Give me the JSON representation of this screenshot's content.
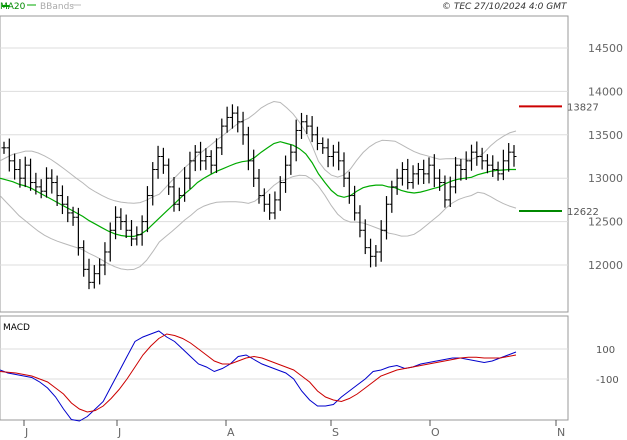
{
  "header": {
    "ma_label": "MA20",
    "bb_label": "BBands",
    "copyright": "© TEC 27/10/2024 4:0 GMT"
  },
  "macd_label": "MACD",
  "colors": {
    "price": "#000000",
    "ma": "#00aa00",
    "bbands": "#b8b8b8",
    "resistance": "#cc0000",
    "support": "#008800",
    "macd_line": "#0000cc",
    "signal_line": "#cc0000",
    "grid": "#dddddd"
  },
  "chart_data": [
    {
      "type": "ohlc",
      "title": "",
      "y_ticks": [
        12000,
        12500,
        13000,
        13500,
        14000,
        14500
      ],
      "ylim": [
        11750,
        14700
      ],
      "x_month_labels": [
        "J",
        "J",
        "A",
        "S",
        "O",
        "N"
      ],
      "levels": [
        {
          "name": "resistance",
          "value": 13827,
          "label": "13827"
        },
        {
          "name": "support",
          "value": 12622,
          "label": "12622"
        }
      ],
      "close": [
        13350,
        13200,
        13100,
        13000,
        13150,
        12950,
        12900,
        12850,
        13000,
        12950,
        12800,
        12700,
        12600,
        12550,
        12200,
        11950,
        11800,
        11900,
        12000,
        12150,
        12400,
        12550,
        12500,
        12400,
        12300,
        12350,
        12500,
        12800,
        13100,
        13250,
        13150,
        12900,
        12700,
        12800,
        13000,
        13200,
        13300,
        13200,
        13250,
        13150,
        13350,
        13600,
        13700,
        13750,
        13650,
        13500,
        13200,
        13000,
        12800,
        12700,
        12600,
        12750,
        12950,
        13150,
        13300,
        13550,
        13650,
        13600,
        13500,
        13400,
        13350,
        13250,
        13300,
        13200,
        13000,
        12800,
        12600,
        12400,
        12200,
        12100,
        12150,
        12400,
        12700,
        12900,
        13000,
        13100,
        12950,
        13050,
        13100,
        13050,
        13150,
        13000,
        12950,
        12750,
        12900,
        13150,
        13100,
        13200,
        13300,
        13250,
        13200,
        13150,
        13100,
        13050,
        13200,
        13300,
        13250
      ],
      "ma20": [
        13000,
        12980,
        12960,
        12930,
        12910,
        12880,
        12840,
        12800,
        12760,
        12720,
        12680,
        12640,
        12600,
        12560,
        12510,
        12470,
        12430,
        12390,
        12360,
        12340,
        12330,
        12330,
        12350,
        12400,
        12470,
        12540,
        12610,
        12680,
        12750,
        12820,
        12880,
        12950,
        13000,
        13040,
        13080,
        13110,
        13140,
        13170,
        13190,
        13200,
        13240,
        13300,
        13350,
        13400,
        13420,
        13400,
        13380,
        13340,
        13280,
        13180,
        13050,
        12950,
        12860,
        12800,
        12780,
        12800,
        12850,
        12890,
        12910,
        12920,
        12920,
        12900,
        12890,
        12860,
        12840,
        12830,
        12840,
        12860,
        12880,
        12900,
        12940,
        12970,
        12990,
        13000,
        13010,
        13040,
        13060,
        13080,
        13090,
        13095,
        13100,
        13100
      ]
    },
    {
      "type": "line",
      "title": "MACD",
      "y_ticks": [
        100,
        -100
      ],
      "ylim": [
        -400,
        300
      ],
      "series": [
        {
          "name": "MACD",
          "values": [
            -40,
            -60,
            -70,
            -80,
            -90,
            -120,
            -160,
            -220,
            -300,
            -370,
            -380,
            -350,
            -300,
            -250,
            -150,
            -50,
            50,
            150,
            180,
            200,
            220,
            180,
            150,
            100,
            50,
            0,
            -20,
            -50,
            -30,
            0,
            50,
            60,
            30,
            0,
            -20,
            -40,
            -60,
            -100,
            -180,
            -240,
            -280,
            -280,
            -270,
            -220,
            -180,
            -140,
            -100,
            -50,
            -40,
            -20,
            -10,
            -30,
            -20,
            0,
            10,
            20,
            30,
            40,
            40,
            30,
            20,
            10,
            20,
            40,
            60,
            80
          ]
        },
        {
          "name": "Signal",
          "values": [
            -50,
            -55,
            -60,
            -70,
            -80,
            -100,
            -120,
            -160,
            -200,
            -260,
            -300,
            -320,
            -310,
            -280,
            -230,
            -170,
            -100,
            -20,
            60,
            120,
            170,
            200,
            190,
            170,
            140,
            100,
            60,
            20,
            0,
            0,
            20,
            40,
            50,
            40,
            20,
            0,
            -20,
            -40,
            -80,
            -120,
            -180,
            -220,
            -240,
            -250,
            -230,
            -200,
            -160,
            -120,
            -80,
            -60,
            -40,
            -30,
            -20,
            -10,
            0,
            10,
            20,
            30,
            40,
            45,
            45,
            40,
            40,
            40,
            50,
            60
          ]
        }
      ]
    }
  ]
}
